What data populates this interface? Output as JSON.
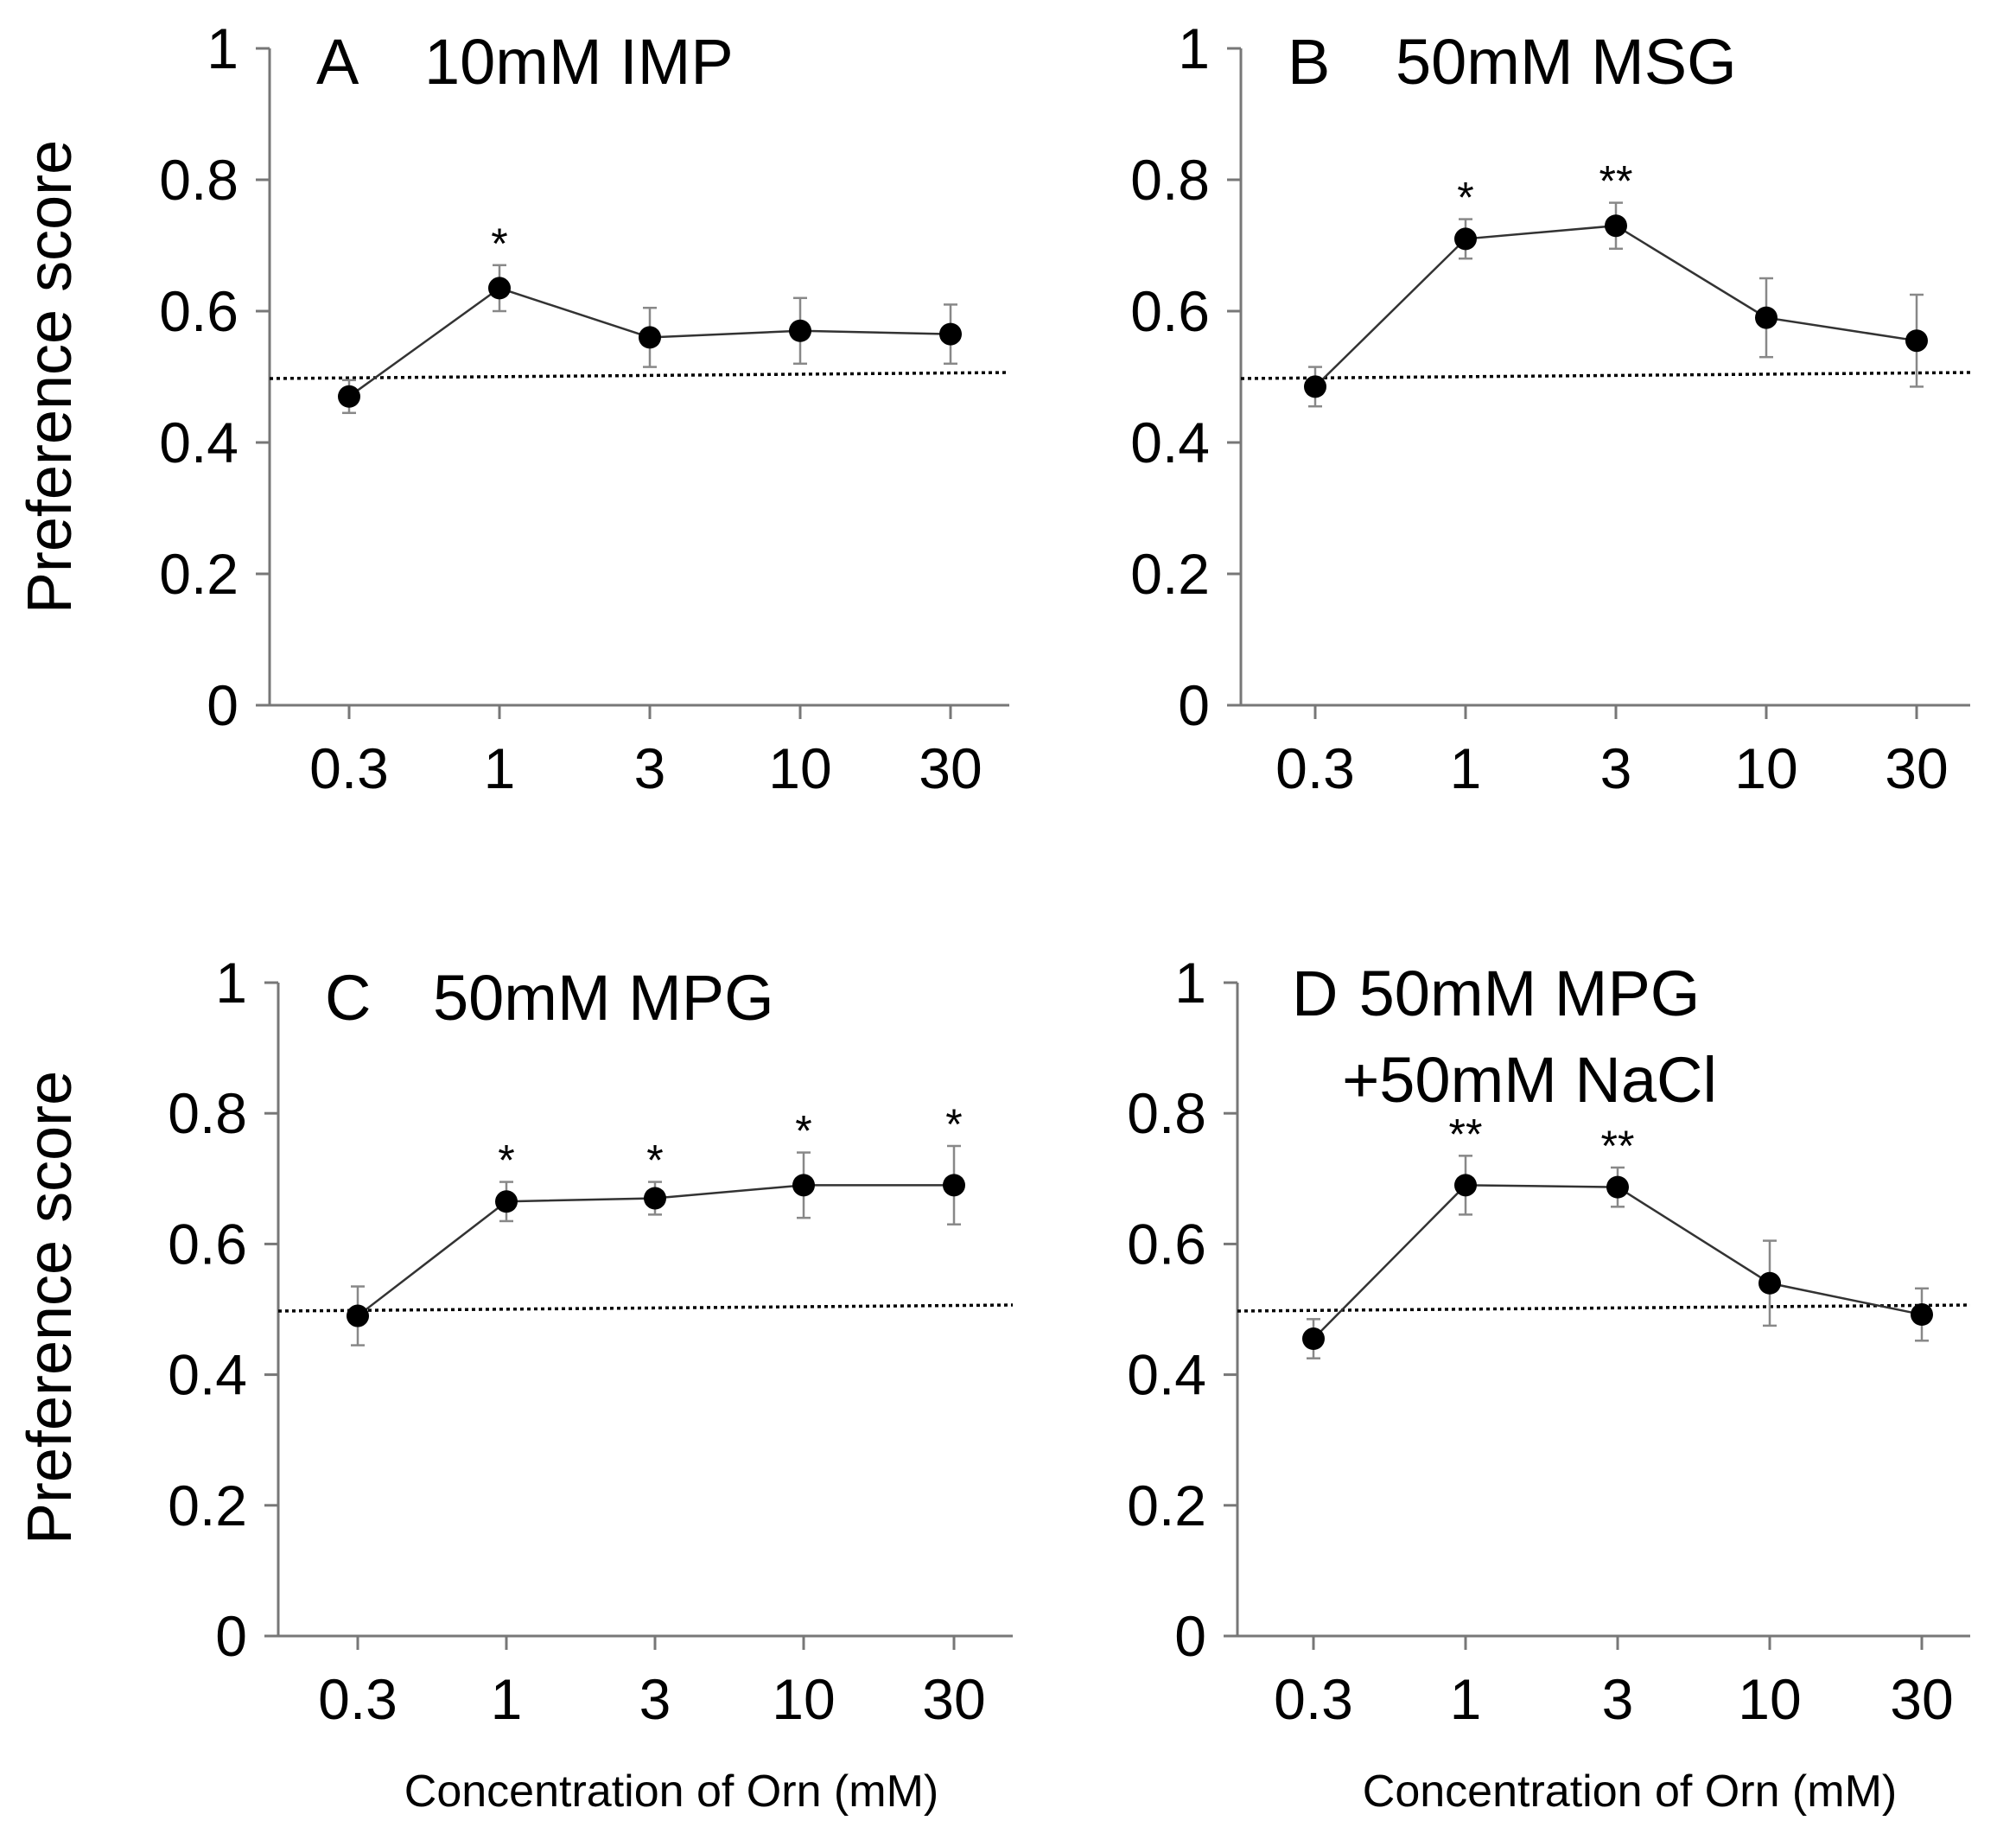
{
  "chart_data": [
    {
      "type": "line",
      "panel": "A",
      "title": "10mM IMP",
      "title_lines": [
        "10mM IMP"
      ],
      "ylabel": "Preference score",
      "xlabel": "",
      "ylim": [
        0,
        1
      ],
      "yticks": [
        "0",
        "0.2",
        "0.4",
        "0.6",
        "0.8",
        "1"
      ],
      "categories": [
        "0.3",
        "1",
        "3",
        "10",
        "30"
      ],
      "values": [
        0.47,
        0.635,
        0.56,
        0.57,
        0.565
      ],
      "errors": [
        0.025,
        0.035,
        0.045,
        0.05,
        0.045
      ],
      "significance": [
        "",
        "*",
        "",
        "",
        ""
      ],
      "reference_line": 0.5
    },
    {
      "type": "line",
      "panel": "B",
      "title": "50mM MSG",
      "title_lines": [
        "50mM MSG"
      ],
      "ylabel": "",
      "xlabel": "",
      "ylim": [
        0,
        1
      ],
      "yticks": [
        "0",
        "0.2",
        "0.4",
        "0.6",
        "0.8",
        "1"
      ],
      "categories": [
        "0.3",
        "1",
        "3",
        "10",
        "30"
      ],
      "values": [
        0.485,
        0.71,
        0.73,
        0.59,
        0.555
      ],
      "errors": [
        0.03,
        0.03,
        0.035,
        0.06,
        0.07
      ],
      "significance": [
        "",
        "*",
        "**",
        "",
        ""
      ],
      "reference_line": 0.5
    },
    {
      "type": "line",
      "panel": "C",
      "title": "50mM MPG",
      "title_lines": [
        "50mM MPG"
      ],
      "ylabel": "Preference score",
      "xlabel": "Concentration of Orn (mM)",
      "ylim": [
        0,
        1
      ],
      "yticks": [
        "0",
        "0.2",
        "0.4",
        "0.6",
        "0.8",
        "1"
      ],
      "categories": [
        "0.3",
        "1",
        "3",
        "10",
        "30"
      ],
      "values": [
        0.49,
        0.665,
        0.67,
        0.69,
        0.69
      ],
      "errors": [
        0.045,
        0.03,
        0.025,
        0.05,
        0.06
      ],
      "significance": [
        "",
        "*",
        "*",
        "*",
        "*"
      ],
      "reference_line": 0.5
    },
    {
      "type": "line",
      "panel": "D",
      "title": "50mM MPG +50mM NaCl",
      "title_lines": [
        "50mM MPG",
        "+50mM NaCl"
      ],
      "ylabel": "",
      "xlabel": "Concentration of Orn (mM)",
      "ylim": [
        0,
        1
      ],
      "yticks": [
        "0",
        "0.2",
        "0.4",
        "0.6",
        "0.8",
        "1"
      ],
      "categories": [
        "0.3",
        "1",
        "3",
        "10",
        "30"
      ],
      "values": [
        0.455,
        0.69,
        0.687,
        0.54,
        0.492
      ],
      "errors": [
        0.03,
        0.045,
        0.03,
        0.065,
        0.04
      ],
      "significance": [
        "",
        "**",
        "**",
        "",
        ""
      ],
      "reference_line": 0.5
    }
  ]
}
